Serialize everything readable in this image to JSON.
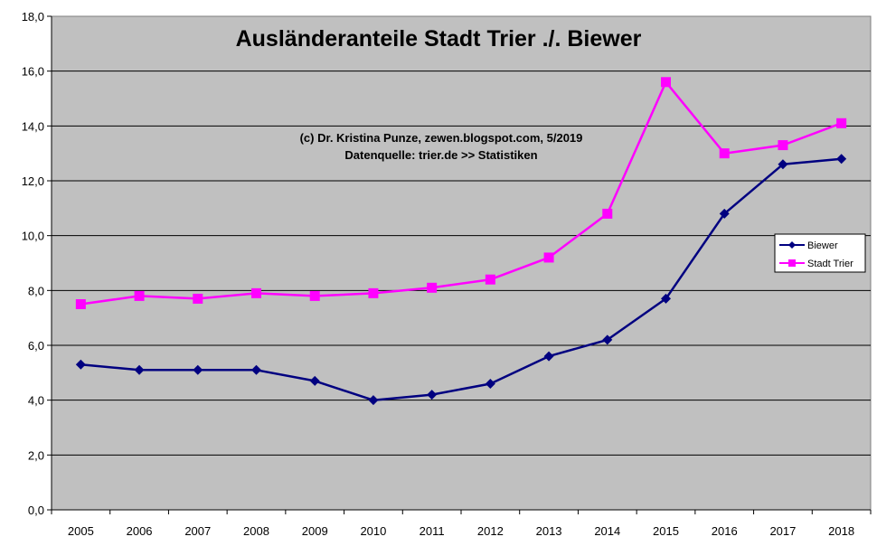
{
  "chart_data": {
    "type": "line",
    "title": "Ausländeranteile Stadt Trier ./. Biewer",
    "annotations": [
      "(c) Dr. Kristina Punze, zewen.blogspot.com, 5/2019",
      "Datenquelle: trier.de >> Statistiken"
    ],
    "categories": [
      "2005",
      "2006",
      "2007",
      "2008",
      "2009",
      "2010",
      "2011",
      "2012",
      "2013",
      "2014",
      "2015",
      "2016",
      "2017",
      "2018"
    ],
    "y_ticks": [
      "0,0",
      "2,0",
      "4,0",
      "6,0",
      "8,0",
      "10,0",
      "12,0",
      "14,0",
      "16,0",
      "18,0"
    ],
    "ylim": [
      0,
      18
    ],
    "grid": true,
    "legend_position": "right",
    "series": [
      {
        "name": "Biewer",
        "color": "#000080",
        "marker": "diamond",
        "values": [
          5.3,
          5.1,
          5.1,
          5.1,
          4.7,
          4.0,
          4.2,
          4.6,
          5.6,
          6.2,
          7.7,
          10.8,
          12.6,
          12.8
        ]
      },
      {
        "name": "Stadt Trier",
        "color": "#ff00ff",
        "marker": "square",
        "values": [
          7.5,
          7.8,
          7.7,
          7.9,
          7.8,
          7.9,
          8.1,
          8.4,
          9.2,
          10.8,
          15.6,
          13.0,
          13.3,
          14.1
        ]
      }
    ],
    "colors": {
      "plot_background": "#c0c0c0",
      "gridline": "#000000"
    }
  }
}
